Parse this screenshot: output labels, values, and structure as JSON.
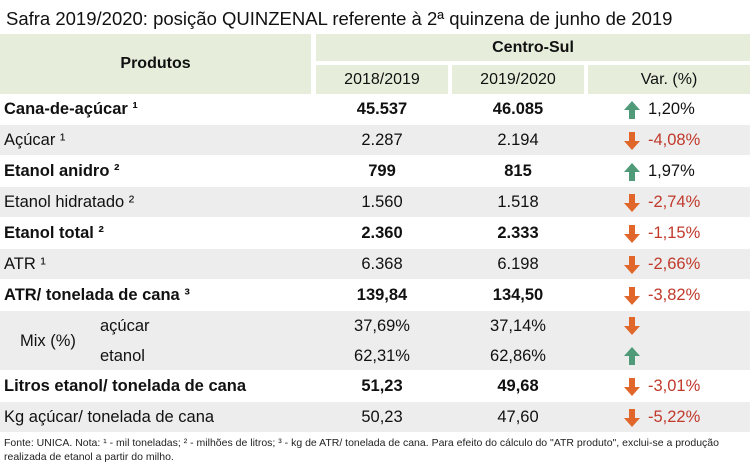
{
  "title": "Safra 2019/2020: posição QUINZENAL referente à 2ª quinzena de junho de 2019",
  "header": {
    "produtos": "Produtos",
    "region": "Centro-Sul",
    "year1": "2018/2019",
    "year2": "2019/2020",
    "var": "Var. (%)"
  },
  "colors": {
    "header_bg": "#e6eedb",
    "row_shade": "#ededed",
    "up_arrow": "#4f9a78",
    "down_arrow": "#e0662a",
    "negative_text": "#c0392b"
  },
  "rows": [
    {
      "name": "Cana-de-açúcar ¹",
      "v1": "45.537",
      "v2": "46.085",
      "dir": "up",
      "var": "1,20%",
      "bold": true
    },
    {
      "name": "Açúcar ¹",
      "v1": "2.287",
      "v2": "2.194",
      "dir": "down",
      "var": "-4,08%",
      "bold": false
    },
    {
      "name": "Etanol anidro ²",
      "v1": "799",
      "v2": "815",
      "dir": "up",
      "var": "1,97%",
      "bold": true
    },
    {
      "name": "Etanol hidratado ²",
      "v1": "1.560",
      "v2": "1.518",
      "dir": "down",
      "var": "-2,74%",
      "bold": false
    },
    {
      "name": "Etanol total ²",
      "v1": "2.360",
      "v2": "2.333",
      "dir": "down",
      "var": "-1,15%",
      "bold": true
    },
    {
      "name": "ATR ¹",
      "v1": "6.368",
      "v2": "6.198",
      "dir": "down",
      "var": "-2,66%",
      "bold": false
    },
    {
      "name": "ATR/ tonelada de cana ³",
      "v1": "139,84",
      "v2": "134,50",
      "dir": "down",
      "var": "-3,82%",
      "bold": true
    }
  ],
  "mix": {
    "label": "Mix (%)",
    "acucar": {
      "name": "açúcar",
      "v1": "37,69%",
      "v2": "37,14%",
      "dir": "down"
    },
    "etanol": {
      "name": "etanol",
      "v1": "62,31%",
      "v2": "62,86%",
      "dir": "up"
    }
  },
  "rows2": [
    {
      "name": "Litros etanol/ tonelada de cana",
      "v1": "51,23",
      "v2": "49,68",
      "dir": "down",
      "var": "-3,01%",
      "bold": true
    },
    {
      "name": "Kg açúcar/ tonelada de cana",
      "v1": "50,23",
      "v2": "47,60",
      "dir": "down",
      "var": "-5,22%",
      "bold": false
    }
  ],
  "footnote": "Fonte: UNICA. Nota: ¹ - mil toneladas; ² - milhões de litros; ³ - kg de ATR/ tonelada de cana. Para efeito do cálculo do \"ATR produto\", exclui-se a produção realizada de etanol a partir do milho."
}
